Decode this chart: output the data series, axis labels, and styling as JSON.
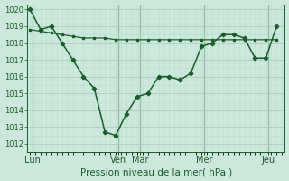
{
  "background_color": "#cce8dc",
  "grid_color_major": "#aacfbe",
  "grid_color_minor": "#bcddd0",
  "line_color": "#1a5c28",
  "marker_color": "#1a5c28",
  "xlabel": "Pression niveau de la mer( hPa )",
  "ylim_min": 1011.5,
  "ylim_max": 1020.3,
  "yticks": [
    1012,
    1013,
    1014,
    1015,
    1016,
    1017,
    1018,
    1019,
    1020
  ],
  "x_day_labels": [
    "Lun",
    "Ven",
    "Mar",
    "Mer",
    "Jeu"
  ],
  "x_day_positions": [
    0.5,
    16.5,
    20.5,
    32.5,
    44.5
  ],
  "x_vline_positions": [
    0.5,
    16.5,
    20.5,
    32.5,
    44.5
  ],
  "xlim_min": -0.5,
  "xlim_max": 47.5,
  "series1_x": [
    0,
    2,
    4,
    6,
    8,
    10,
    12,
    14,
    16,
    18,
    20,
    22,
    24,
    26,
    28,
    30,
    32,
    34,
    36,
    38,
    40,
    42,
    44,
    46
  ],
  "series1_y": [
    1018.8,
    1018.7,
    1018.6,
    1018.5,
    1018.4,
    1018.3,
    1018.3,
    1018.3,
    1018.2,
    1018.2,
    1018.2,
    1018.2,
    1018.2,
    1018.2,
    1018.2,
    1018.2,
    1018.2,
    1018.2,
    1018.2,
    1018.2,
    1018.2,
    1018.2,
    1018.2,
    1018.2
  ],
  "series2_x": [
    0,
    2,
    4,
    6,
    8,
    10,
    12,
    14,
    16,
    18,
    20,
    22,
    24,
    26,
    28,
    30,
    32,
    34,
    36,
    38,
    40,
    42,
    44,
    46
  ],
  "series2_y": [
    1020.0,
    1018.8,
    1019.0,
    1018.0,
    1017.0,
    1016.0,
    1015.3,
    1012.7,
    1012.5,
    1013.8,
    1014.8,
    1015.0,
    1016.0,
    1016.0,
    1015.8,
    1016.2,
    1017.8,
    1018.0,
    1018.5,
    1018.5,
    1018.3,
    1017.1,
    1017.1,
    1019.0
  ],
  "xlabel_fontsize": 7.5,
  "ytick_fontsize": 6.0,
  "xtick_fontsize": 7.0
}
